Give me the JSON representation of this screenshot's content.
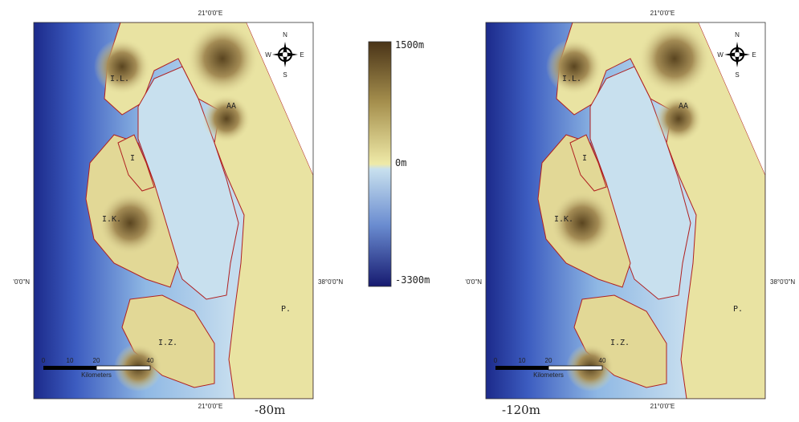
{
  "colorbar": {
    "labels": [
      "1500m",
      "0m",
      "-3300m"
    ]
  },
  "maps": [
    {
      "caption": "-80m",
      "lon_label": "21°0'0\"E",
      "lat_label": "38°0'0\"N",
      "lat_label_cut": "'0'0\"N",
      "place_labels": [
        "I.L.",
        "AA",
        "I",
        "I.K.",
        "P.",
        "I.Z."
      ],
      "scale": {
        "ticks": [
          "0",
          "10",
          "20",
          "40"
        ],
        "unit": "Kilometers"
      },
      "compass": [
        "N",
        "W",
        "E",
        "S"
      ]
    },
    {
      "caption": "-120m",
      "lon_label": "21°0'0\"E",
      "lat_label": "38°0'0\"N",
      "lat_label_cut": "'0'0\"N",
      "place_labels": [
        "I.L.",
        "AA",
        "I",
        "I.K.",
        "P.",
        "I.Z."
      ],
      "scale": {
        "ticks": [
          "0",
          "10",
          "20",
          "40"
        ],
        "unit": "Kilometers"
      },
      "compass": [
        "N",
        "W",
        "E",
        "S"
      ]
    }
  ]
}
